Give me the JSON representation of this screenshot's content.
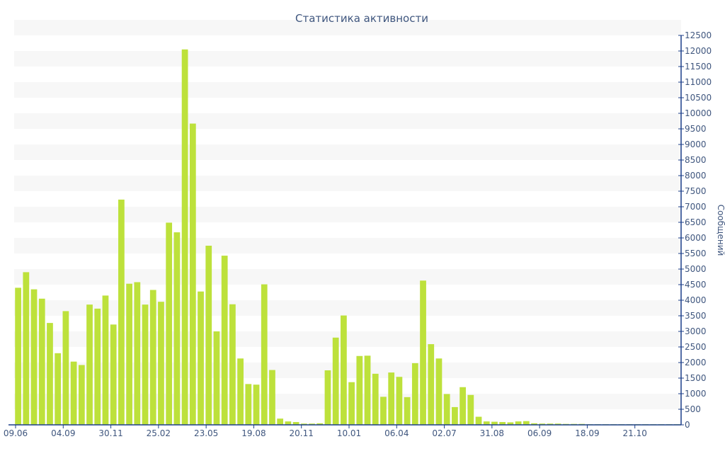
{
  "chart_data": {
    "type": "bar",
    "title": "Статистика активности",
    "ylabel": "Сообщений",
    "xlabel": "",
    "ylim": [
      0,
      12500
    ],
    "ytick_step": 500,
    "grid": "horizontal-bands",
    "y_axis_side": "right",
    "x_tick_labels": [
      {
        "label": "09.06",
        "index": 0
      },
      {
        "label": "04.09",
        "index": 6
      },
      {
        "label": "30.11",
        "index": 12
      },
      {
        "label": "25.02",
        "index": 18
      },
      {
        "label": "23.05",
        "index": 24
      },
      {
        "label": "19.08",
        "index": 30
      },
      {
        "label": "20.11",
        "index": 36
      },
      {
        "label": "10.01",
        "index": 42
      },
      {
        "label": "06.04",
        "index": 48
      },
      {
        "label": "02.07",
        "index": 54
      },
      {
        "label": "31.08",
        "index": 60
      },
      {
        "label": "06.09",
        "index": 66
      },
      {
        "label": "18.09",
        "index": 72
      },
      {
        "label": "21.10",
        "index": 78
      }
    ],
    "values": [
      4400,
      4900,
      4350,
      4050,
      3270,
      2300,
      3650,
      2030,
      1920,
      3860,
      3730,
      4150,
      3220,
      7230,
      4530,
      4580,
      3860,
      4330,
      3950,
      6490,
      6180,
      12050,
      9670,
      4280,
      5750,
      3000,
      5430,
      3870,
      2130,
      1310,
      1290,
      4510,
      1760,
      200,
      110,
      90,
      40,
      40,
      50,
      1750,
      2800,
      3510,
      1370,
      2210,
      2220,
      1640,
      900,
      1680,
      1540,
      890,
      1980,
      4630,
      2590,
      2130,
      990,
      570,
      1210,
      960,
      260,
      110,
      100,
      90,
      80,
      110,
      120,
      50,
      40,
      40,
      40,
      30,
      30,
      30,
      20,
      20,
      20,
      20,
      20,
      20,
      20,
      20,
      20,
      20,
      20,
      20
    ],
    "colors": {
      "bar": "#bde13b",
      "axis": "#1c3f8a",
      "text": "#3f567e",
      "band": "#f7f7f7"
    }
  }
}
